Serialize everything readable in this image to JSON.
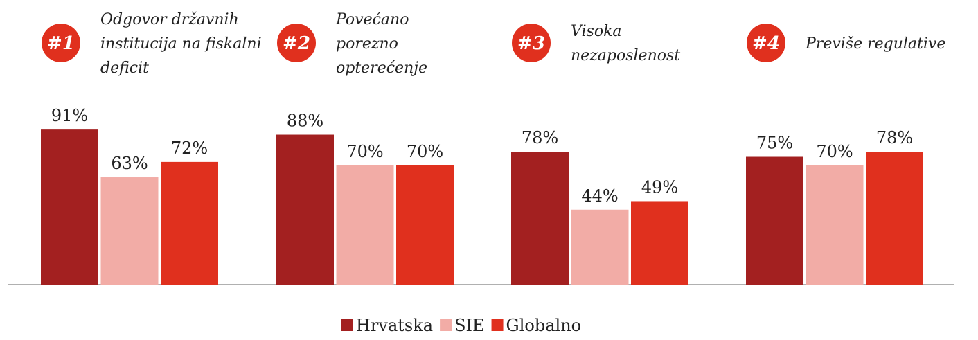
{
  "chart_data": {
    "type": "bar",
    "category_badges": [
      "#1",
      "#2",
      "#3",
      "#4"
    ],
    "categories": [
      "Odgovor državnih institucija na fiskalni deficit",
      "Povećano porezno opterećenje",
      "Visoka nezaposlenost",
      "Previše regulative"
    ],
    "series": [
      {
        "name": "Hrvatska",
        "color": "#a32020",
        "values": [
          91,
          88,
          78,
          75
        ],
        "value_labels": [
          "91%",
          "88%",
          "78%",
          "75%"
        ]
      },
      {
        "name": "SIE",
        "color": "#f2aca6",
        "values": [
          63,
          70,
          44,
          70
        ],
        "value_labels": [
          "63%",
          "70%",
          "44%",
          "70%"
        ]
      },
      {
        "name": "Globalno",
        "color": "#e0301e",
        "values": [
          72,
          70,
          49,
          78
        ],
        "value_labels": [
          "72%",
          "70%",
          "49%",
          "78%"
        ]
      }
    ],
    "badge_color": "#e0301e"
  }
}
